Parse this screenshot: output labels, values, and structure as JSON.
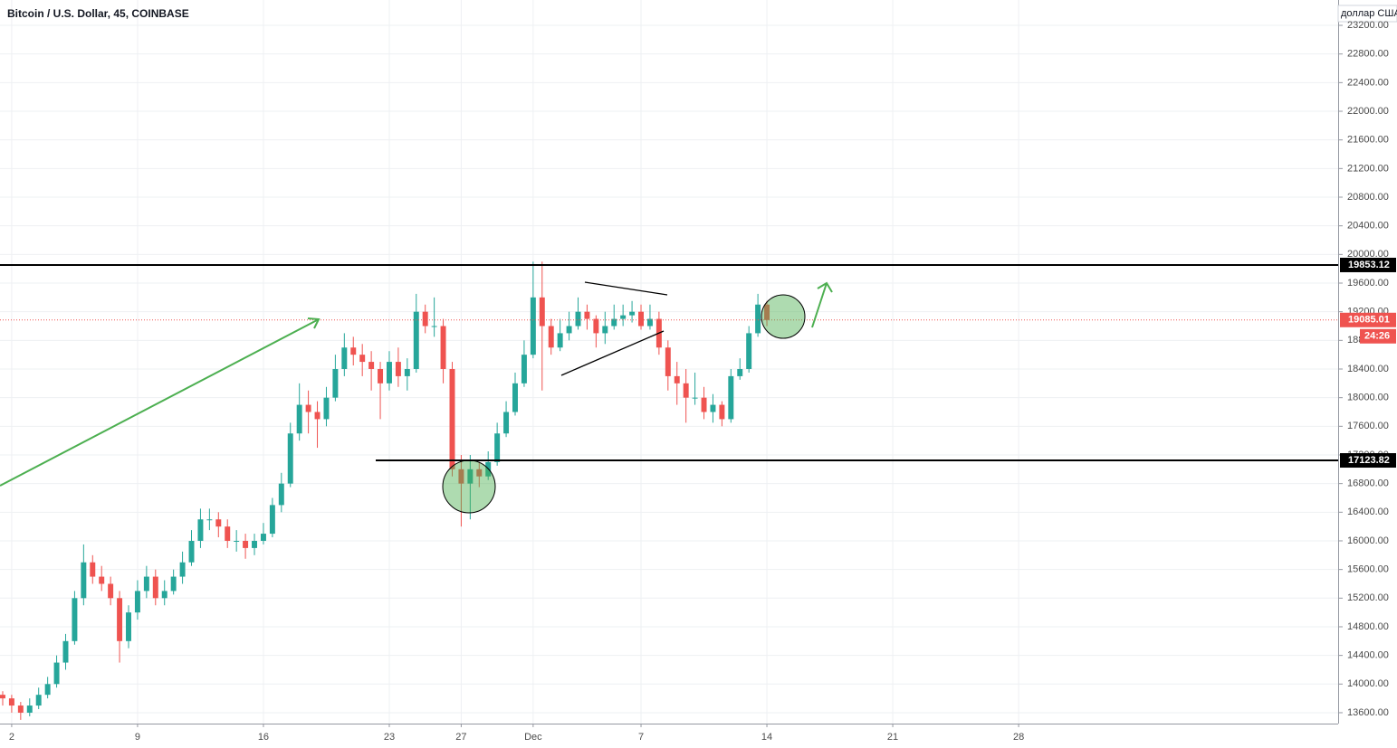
{
  "chart_data": {
    "type": "candlestick",
    "title": "Bitcoin / U.S. Dollar, 45, COINBASE",
    "y_axis_label": "доллар США",
    "x": [
      1.5,
      2,
      2.5,
      3,
      3.5,
      4,
      4.5,
      5,
      5.5,
      6,
      6.5,
      7,
      7.5,
      8,
      8.5,
      9,
      9.5,
      10,
      10.5,
      11,
      11.5,
      12,
      12.5,
      13,
      13.5,
      14,
      14.5,
      15,
      15.5,
      16,
      16.5,
      17,
      17.5,
      18,
      18.5,
      19,
      19.5,
      20,
      20.5,
      21,
      21.5,
      22,
      22.5,
      23,
      23.5,
      24,
      24.5,
      25,
      25.5,
      26,
      26.5,
      27,
      27.5,
      28,
      28.5,
      29,
      29.5,
      30,
      30.5,
      31,
      31.5,
      32,
      32.5,
      33,
      33.5,
      34,
      34.5,
      35,
      35.5,
      36,
      36.5,
      37,
      37.5,
      38,
      38.5,
      39,
      39.5,
      40,
      40.5,
      41,
      41.5,
      42,
      42.5,
      43,
      43.5,
      44
    ],
    "open": [
      13850,
      13800,
      13700,
      13600,
      13700,
      13850,
      14000,
      14300,
      14600,
      15200,
      15700,
      15500,
      15400,
      15200,
      14600,
      15000,
      15300,
      15500,
      15200,
      15300,
      15500,
      15700,
      16000,
      16300,
      16300,
      16200,
      16000,
      16000,
      15900,
      16000,
      16100,
      16500,
      16800,
      17500,
      17900,
      17800,
      17700,
      18000,
      18400,
      18700,
      18600,
      18500,
      18400,
      18200,
      18500,
      18300,
      18400,
      19200,
      19000,
      19000,
      18400,
      17000,
      16800,
      17000,
      16900,
      17100,
      17500,
      17800,
      18200,
      18600,
      19400,
      19000,
      18700,
      18900,
      19000,
      19200,
      19100,
      18900,
      19000,
      19100,
      19150,
      19200,
      19000,
      19100,
      18700,
      18300,
      18200,
      18000,
      18000,
      17800,
      17900,
      17700,
      18300,
      18400,
      18900,
      19300
    ],
    "high": [
      13900,
      13850,
      13750,
      13800,
      13950,
      14100,
      14400,
      14700,
      15300,
      15950,
      15800,
      15650,
      15500,
      15300,
      15100,
      15450,
      15650,
      15600,
      15450,
      15600,
      15850,
      16150,
      16450,
      16450,
      16400,
      16300,
      16150,
      16100,
      16100,
      16250,
      16600,
      16950,
      17650,
      18200,
      18100,
      17950,
      18150,
      18600,
      18900,
      18850,
      18750,
      18650,
      18500,
      18650,
      18700,
      18550,
      19450,
      19300,
      19400,
      19100,
      18500,
      17200,
      17200,
      17100,
      17250,
      17650,
      17950,
      18350,
      18800,
      19900,
      19900,
      19100,
      19100,
      19200,
      19400,
      19300,
      19150,
      19200,
      19300,
      19300,
      19350,
      19300,
      19300,
      19200,
      18800,
      18500,
      18400,
      18350,
      18150,
      18050,
      17950,
      18400,
      18550,
      19000,
      19450,
      19350
    ],
    "low": [
      13700,
      13600,
      13500,
      13550,
      13650,
      13800,
      13950,
      14200,
      14550,
      15100,
      15400,
      15300,
      15100,
      14300,
      14500,
      14900,
      15200,
      15100,
      15100,
      15250,
      15400,
      15650,
      15900,
      16150,
      16050,
      15900,
      15850,
      15750,
      15800,
      15950,
      16050,
      16400,
      16750,
      17400,
      17500,
      17300,
      17600,
      17950,
      18300,
      18450,
      18300,
      18100,
      17700,
      18100,
      18150,
      18100,
      18350,
      18900,
      18850,
      18200,
      16900,
      16200,
      16300,
      16750,
      16850,
      17050,
      17450,
      17750,
      18150,
      18550,
      18100,
      18600,
      18650,
      18800,
      18950,
      18950,
      18700,
      18750,
      18950,
      19000,
      19050,
      18950,
      18950,
      18600,
      18100,
      17900,
      17650,
      17900,
      17700,
      17650,
      17600,
      17650,
      18250,
      18350,
      18850,
      19000
    ],
    "close": [
      13800,
      13700,
      13600,
      13700,
      13850,
      14000,
      14300,
      14600,
      15200,
      15700,
      15500,
      15400,
      15200,
      14600,
      15000,
      15300,
      15500,
      15200,
      15300,
      15500,
      15700,
      16000,
      16300,
      16300,
      16200,
      16000,
      16000,
      15900,
      16000,
      16100,
      16500,
      16800,
      17500,
      17900,
      17800,
      17700,
      18000,
      18400,
      18700,
      18600,
      18500,
      18400,
      18200,
      18500,
      18300,
      18400,
      19200,
      19000,
      19000,
      18400,
      17000,
      16800,
      17000,
      16900,
      17100,
      17500,
      17800,
      18200,
      18600,
      19400,
      19000,
      18700,
      18900,
      19000,
      19200,
      19100,
      18900,
      19000,
      19100,
      19150,
      19200,
      19000,
      19100,
      18700,
      18300,
      18200,
      18000,
      18000,
      17800,
      17900,
      17700,
      18300,
      18400,
      18900,
      19300,
      19085
    ],
    "up_color": "#26a69a",
    "down_color": "#ef5350",
    "xlim": [
      1.35,
      75.77
    ],
    "xticks": [
      2,
      9,
      16,
      23,
      27,
      {
        "value": 31,
        "label": "Dec"
      },
      {
        "value": 37,
        "label": "7"
      },
      {
        "value": 44,
        "label": "14"
      },
      {
        "value": 51,
        "label": "21"
      },
      {
        "value": 58,
        "label": "28"
      }
    ],
    "ylim": [
      13448,
      23554
    ],
    "yticks": [
      {
        "value": 13600,
        "label": "13600.00"
      },
      {
        "value": 14000,
        "label": "14000.00"
      },
      {
        "value": 14400,
        "label": "14400.00"
      },
      {
        "value": 14800,
        "label": "14800.00"
      },
      {
        "value": 15200,
        "label": "15200.00"
      },
      {
        "value": 15600,
        "label": "15600.00"
      },
      {
        "value": 16000,
        "label": "16000.00"
      },
      {
        "value": 16400,
        "label": "16400.00"
      },
      {
        "value": 16800,
        "label": "16800.00"
      },
      {
        "value": 17200,
        "label": "17200.00"
      },
      {
        "value": 17600,
        "label": "17600.00"
      },
      {
        "value": 18000,
        "label": "18000.00"
      },
      {
        "value": 18400,
        "label": "18400.00"
      },
      {
        "value": 18800,
        "label": "18800.00"
      },
      {
        "value": 19200,
        "label": "19200.00"
      },
      {
        "value": 19600,
        "label": "19600.00"
      },
      {
        "value": 20000,
        "label": "20000.00"
      },
      {
        "value": 20400,
        "label": "20400.00"
      },
      {
        "value": 20800,
        "label": "20800.00"
      },
      {
        "value": 21200,
        "label": "21200.00"
      },
      {
        "value": 21600,
        "label": "21600.00"
      },
      {
        "value": 22000,
        "label": "22000.00"
      },
      {
        "value": 22400,
        "label": "22400.00"
      },
      {
        "value": 22800,
        "label": "22800.00"
      },
      {
        "value": 23200,
        "label": "23200.00"
      }
    ],
    "grid": true,
    "price_lines": [
      19853.12,
      17123.82
    ],
    "last_price": 19085.01,
    "countdown": "24:26"
  }
}
